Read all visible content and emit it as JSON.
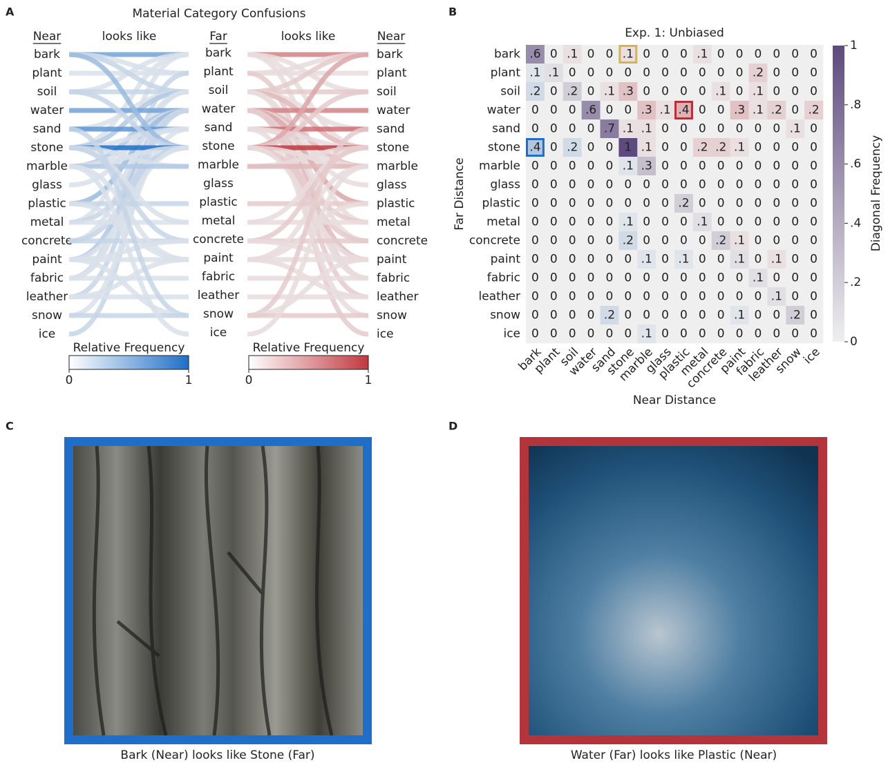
{
  "chart_data": [
    {
      "type": "flow",
      "label": "A",
      "title": "Material Category Confusions",
      "column_headers": [
        "Near",
        "looks like",
        "Far",
        "looks like",
        "Near"
      ],
      "colorbars": [
        {
          "title": "Relative Frequency",
          "ticks": [
            0,
            1
          ],
          "color": "#1f6fc8"
        },
        {
          "title": "Relative Frequency",
          "ticks": [
            0,
            1
          ],
          "color": "#c0393f"
        }
      ]
    },
    {
      "type": "heatmap",
      "label": "B",
      "title": "Exp. 1: Unbiased",
      "xlabel": "Near Distance",
      "ylabel": "Far Distance",
      "categories": [
        "bark",
        "plant",
        "soil",
        "water",
        "sand",
        "stone",
        "marble",
        "glass",
        "plastic",
        "metal",
        "concrete",
        "paint",
        "fabric",
        "leather",
        "snow",
        "ice"
      ],
      "values": [
        [
          0.6,
          0,
          0.1,
          0,
          0,
          0.1,
          0,
          0,
          0,
          0.1,
          0,
          0,
          0,
          0,
          0,
          0
        ],
        [
          0.1,
          0.1,
          0,
          0,
          0,
          0,
          0,
          0,
          0,
          0,
          0,
          0,
          0.2,
          0,
          0,
          0
        ],
        [
          0.2,
          0,
          0.2,
          0,
          0.1,
          0.3,
          0,
          0,
          0,
          0,
          0.1,
          0,
          0.1,
          0,
          0,
          0
        ],
        [
          0,
          0,
          0,
          0.6,
          0,
          0,
          0.3,
          0.1,
          0.4,
          0,
          0,
          0.3,
          0.1,
          0.2,
          0,
          0.2
        ],
        [
          0,
          0,
          0,
          0,
          0.7,
          0.1,
          0.1,
          0,
          0,
          0,
          0,
          0,
          0,
          0,
          0.1,
          0
        ],
        [
          0.4,
          0,
          0.2,
          0,
          0,
          1,
          0.1,
          0,
          0,
          0.2,
          0.2,
          0.1,
          0,
          0,
          0,
          0
        ],
        [
          0,
          0,
          0,
          0,
          0,
          0.1,
          0.3,
          0,
          0,
          0,
          0,
          0,
          0,
          0,
          0,
          0
        ],
        [
          0,
          0,
          0,
          0,
          0,
          0,
          0,
          0,
          0,
          0,
          0,
          0,
          0,
          0,
          0,
          0
        ],
        [
          0,
          0,
          0,
          0,
          0,
          0,
          0,
          0,
          0.2,
          0,
          0,
          0,
          0,
          0,
          0,
          0
        ],
        [
          0,
          0,
          0,
          0,
          0,
          0.1,
          0,
          0,
          0,
          0.1,
          0,
          0,
          0,
          0,
          0,
          0
        ],
        [
          0,
          0,
          0,
          0,
          0,
          0.2,
          0,
          0,
          0,
          0,
          0.2,
          0.1,
          0,
          0,
          0,
          0
        ],
        [
          0,
          0,
          0,
          0,
          0,
          0,
          0.1,
          0,
          0.1,
          0,
          0,
          0.1,
          0,
          0.1,
          0,
          0
        ],
        [
          0,
          0,
          0,
          0,
          0,
          0,
          0,
          0,
          0,
          0,
          0,
          0,
          0.1,
          0,
          0,
          0
        ],
        [
          0,
          0,
          0,
          0,
          0,
          0,
          0,
          0,
          0,
          0,
          0,
          0,
          0,
          0.1,
          0,
          0
        ],
        [
          0,
          0,
          0,
          0,
          0.2,
          0,
          0,
          0,
          0,
          0,
          0,
          0.1,
          0,
          0,
          0.2,
          0
        ],
        [
          0,
          0,
          0,
          0,
          0,
          0,
          0.1,
          0,
          0,
          0,
          0,
          0,
          0,
          0,
          0,
          0
        ]
      ],
      "value_labels": [
        [
          ".6",
          "0",
          ".1",
          "0",
          "0",
          ".1",
          "0",
          "0",
          "0",
          ".1",
          "0",
          "0",
          "0",
          "0",
          "0",
          "0"
        ],
        [
          ".1",
          ".1",
          "0",
          "0",
          "0",
          "0",
          "0",
          "0",
          "0",
          "0",
          "0",
          "0",
          ".2",
          "0",
          "0",
          "0"
        ],
        [
          ".2",
          "0",
          ".2",
          "0",
          ".1",
          ".3",
          "0",
          "0",
          "0",
          "0",
          ".1",
          "0",
          ".1",
          "0",
          "0",
          "0"
        ],
        [
          "0",
          "0",
          "0",
          ".6",
          "0",
          "0",
          ".3",
          ".1",
          ".4",
          "0",
          "0",
          ".3",
          ".1",
          ".2",
          "0",
          ".2"
        ],
        [
          "0",
          "0",
          "0",
          "0",
          ".7",
          ".1",
          ".1",
          "0",
          "0",
          "0",
          "0",
          "0",
          "0",
          "0",
          ".1",
          "0"
        ],
        [
          ".4",
          "0",
          ".2",
          "0",
          "0",
          "1",
          ".1",
          "0",
          "0",
          ".2",
          ".2",
          ".1",
          "0",
          "0",
          "0",
          "0"
        ],
        [
          "0",
          "0",
          "0",
          "0",
          "0",
          ".1",
          ".3",
          "0",
          "0",
          "0",
          "0",
          "0",
          "0",
          "0",
          "0",
          "0"
        ],
        [
          "0",
          "0",
          "0",
          "0",
          "0",
          "0",
          "0",
          "0",
          "0",
          "0",
          "0",
          "0",
          "0",
          "0",
          "0",
          "0"
        ],
        [
          "0",
          "0",
          "0",
          "0",
          "0",
          "0",
          "0",
          "0",
          ".2",
          "0",
          "0",
          "0",
          "0",
          "0",
          "0",
          "0"
        ],
        [
          "0",
          "0",
          "0",
          "0",
          "0",
          ".1",
          "0",
          "0",
          "0",
          ".1",
          "0",
          "0",
          "0",
          "0",
          "0",
          "0"
        ],
        [
          "0",
          "0",
          "0",
          "0",
          "0",
          ".2",
          "0",
          "0",
          "0",
          "0",
          ".2",
          ".1",
          "0",
          "0",
          "0",
          "0"
        ],
        [
          "0",
          "0",
          "0",
          "0",
          "0",
          "0",
          ".1",
          "0",
          ".1",
          "0",
          "0",
          ".1",
          "0",
          ".1",
          "0",
          "0"
        ],
        [
          "0",
          "0",
          "0",
          "0",
          "0",
          "0",
          "0",
          "0",
          "0",
          "0",
          "0",
          "0",
          ".1",
          "0",
          "0",
          "0"
        ],
        [
          "0",
          "0",
          "0",
          "0",
          "0",
          "0",
          "0",
          "0",
          "0",
          "0",
          "0",
          "0",
          "0",
          ".1",
          "0",
          "0"
        ],
        [
          "0",
          "0",
          "0",
          "0",
          ".2",
          "0",
          "0",
          "0",
          "0",
          "0",
          "0",
          ".1",
          "0",
          "0",
          ".2",
          "0"
        ],
        [
          "0",
          "0",
          "0",
          "0",
          "0",
          "0",
          ".1",
          "0",
          "0",
          "0",
          "0",
          "0",
          "0",
          "0",
          "0",
          "0"
        ]
      ],
      "colors": {
        "lower": "#2f6fbf",
        "upper": "#b3303a",
        "diagonal": "#5e4a7e",
        "zero": "#efefef"
      },
      "highlights": [
        {
          "row": 0,
          "col": 5,
          "color": "#d9b24a"
        },
        {
          "row": 5,
          "col": 0,
          "color": "#1f6fc8"
        },
        {
          "row": 3,
          "col": 8,
          "color": "#b3303a"
        }
      ],
      "colorbar": {
        "title": "Diagonal Frequency",
        "lim": [
          0,
          1
        ],
        "ticks": [
          0,
          {
            "value": 0.2,
            "label": ".2"
          },
          {
            "value": 0.4,
            "label": ".4"
          },
          {
            "value": 0.6,
            "label": ".6"
          },
          {
            "value": 0.8,
            "label": ".8"
          },
          1
        ]
      }
    }
  ],
  "figures": [
    {
      "label": "C",
      "caption": "Bark (Near) looks like Stone (Far)"
    },
    {
      "label": "D",
      "caption": "Water (Far) looks like Plastic (Near)"
    }
  ]
}
